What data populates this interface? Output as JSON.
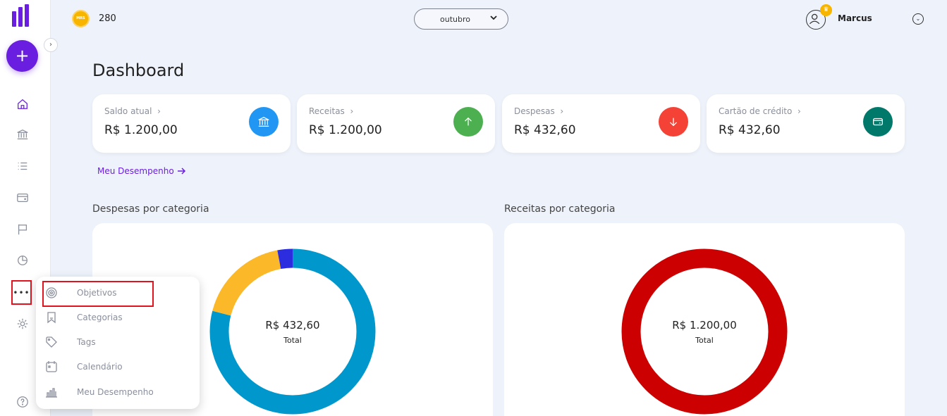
{
  "header": {
    "coin_badge": "MRS",
    "coin_count": "280",
    "month": "outubro",
    "user_name": "Marcus"
  },
  "page": {
    "title": "Dashboard"
  },
  "cards": [
    {
      "label": "Saldo atual",
      "value": "R$ 1.200,00",
      "icon": "bank-icon",
      "color": "#2196f3"
    },
    {
      "label": "Receitas",
      "value": "R$ 1.200,00",
      "icon": "arrow-up-icon",
      "color": "#4caf50"
    },
    {
      "label": "Despesas",
      "value": "R$ 432,60",
      "icon": "arrow-down-icon",
      "color": "#f44336"
    },
    {
      "label": "Cartão de crédito",
      "value": "R$ 432,60",
      "icon": "wallet-icon",
      "color": "#00796b"
    }
  ],
  "performance_link": "Meu Desempenho",
  "sections": {
    "expenses_title": "Despesas por categoria",
    "income_title": "Receitas por categoria"
  },
  "charts": {
    "expenses": {
      "total_value": "R$ 432,60",
      "total_label": "Total",
      "colors": [
        "#0098cc",
        "#fbb829",
        "#2d2de0"
      ]
    },
    "income": {
      "total_value": "R$ 1.200,00",
      "total_label": "Total",
      "colors": [
        "#cc0000"
      ]
    }
  },
  "chart_data": [
    {
      "type": "pie",
      "slices": [
        {
          "value": 79
        },
        {
          "value": 18
        },
        {
          "value": 3
        }
      ]
    },
    {
      "type": "pie",
      "slices": [
        {
          "value": 100
        }
      ]
    }
  ],
  "more_menu": {
    "items": [
      {
        "label": "Objetivos",
        "icon": "target-icon"
      },
      {
        "label": "Categorias",
        "icon": "bookmark-icon"
      },
      {
        "label": "Tags",
        "icon": "tag-icon"
      },
      {
        "label": "Calendário",
        "icon": "calendar-icon"
      },
      {
        "label": "Meu Desempenho",
        "icon": "bar-chart-icon"
      }
    ]
  },
  "sidebar": {
    "add_label": "+",
    "more_label": "•••",
    "icons": [
      "home-icon",
      "bank-icon",
      "list-icon",
      "wallet-icon",
      "flag-icon",
      "pie-chart-icon",
      "more-icon",
      "settings-icon",
      "help-icon"
    ]
  }
}
